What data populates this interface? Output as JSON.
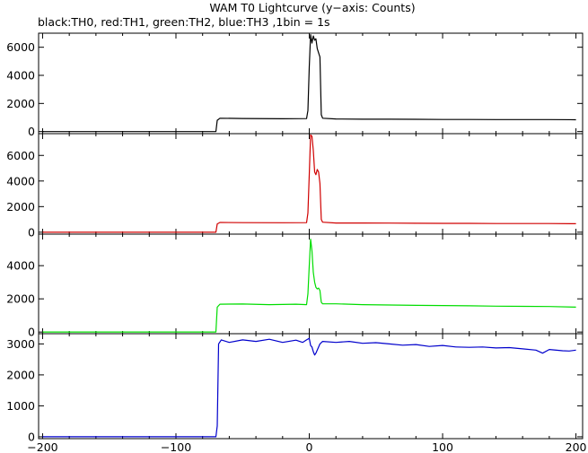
{
  "chart_data": {
    "type": "line",
    "title": "WAM T0 Lightcurve (y−axis: Counts)",
    "subtitle": "black:TH0, red:TH1, green:TH2, blue:TH3 ,1bin = 1s",
    "xlabel": "",
    "x_ticks": [
      -200,
      -100,
      0,
      100,
      200
    ],
    "xlim": [
      -203,
      205
    ],
    "grid": false,
    "panels": [
      {
        "name": "TH0",
        "color": "#000000",
        "ylim": [
          -150,
          7000
        ],
        "y_ticks": [
          0,
          2000,
          4000,
          6000
        ],
        "points": [
          [
            -200,
            0
          ],
          [
            -70,
            0
          ],
          [
            -69,
            800
          ],
          [
            -67,
            950
          ],
          [
            -50,
            930
          ],
          [
            -20,
            910
          ],
          [
            -2,
            920
          ],
          [
            -1,
            1500
          ],
          [
            0,
            4600
          ],
          [
            1,
            6900
          ],
          [
            2,
            6300
          ],
          [
            3,
            6800
          ],
          [
            4,
            6500
          ],
          [
            5,
            6600
          ],
          [
            6,
            5900
          ],
          [
            7,
            5600
          ],
          [
            8,
            5300
          ],
          [
            9,
            1200
          ],
          [
            10,
            950
          ],
          [
            20,
            900
          ],
          [
            40,
            880
          ],
          [
            60,
            880
          ],
          [
            80,
            870
          ],
          [
            100,
            860
          ],
          [
            120,
            860
          ],
          [
            140,
            850
          ],
          [
            160,
            850
          ],
          [
            180,
            850
          ],
          [
            200,
            840
          ]
        ]
      },
      {
        "name": "TH1",
        "color": "#d00000",
        "ylim": [
          -150,
          7700
        ],
        "y_ticks": [
          0,
          2000,
          4000,
          6000
        ],
        "points": [
          [
            -200,
            0
          ],
          [
            -70,
            0
          ],
          [
            -69,
            650
          ],
          [
            -67,
            760
          ],
          [
            -50,
            750
          ],
          [
            -20,
            740
          ],
          [
            -2,
            750
          ],
          [
            -1,
            1500
          ],
          [
            0,
            4500
          ],
          [
            1,
            7600
          ],
          [
            2,
            7500
          ],
          [
            3,
            6400
          ],
          [
            4,
            4700
          ],
          [
            5,
            4500
          ],
          [
            6,
            4900
          ],
          [
            7,
            4700
          ],
          [
            8,
            3800
          ],
          [
            9,
            1000
          ],
          [
            10,
            780
          ],
          [
            20,
            720
          ],
          [
            40,
            720
          ],
          [
            60,
            710
          ],
          [
            80,
            700
          ],
          [
            100,
            690
          ],
          [
            120,
            690
          ],
          [
            140,
            680
          ],
          [
            160,
            680
          ],
          [
            180,
            680
          ],
          [
            200,
            660
          ]
        ]
      },
      {
        "name": "TH2",
        "color": "#00dd00",
        "ylim": [
          -100,
          5900
        ],
        "y_ticks": [
          0,
          2000,
          4000
        ],
        "points": [
          [
            -200,
            0
          ],
          [
            -70,
            0
          ],
          [
            -69,
            1500
          ],
          [
            -67,
            1680
          ],
          [
            -50,
            1690
          ],
          [
            -30,
            1650
          ],
          [
            -10,
            1680
          ],
          [
            -2,
            1650
          ],
          [
            -1,
            2300
          ],
          [
            0,
            4000
          ],
          [
            1,
            5600
          ],
          [
            2,
            4900
          ],
          [
            3,
            3600
          ],
          [
            4,
            3000
          ],
          [
            5,
            2700
          ],
          [
            6,
            2600
          ],
          [
            7,
            2650
          ],
          [
            8,
            2500
          ],
          [
            9,
            1800
          ],
          [
            10,
            1700
          ],
          [
            20,
            1700
          ],
          [
            40,
            1650
          ],
          [
            60,
            1630
          ],
          [
            80,
            1610
          ],
          [
            100,
            1600
          ],
          [
            120,
            1580
          ],
          [
            140,
            1560
          ],
          [
            160,
            1550
          ],
          [
            180,
            1540
          ],
          [
            200,
            1500
          ]
        ]
      },
      {
        "name": "TH3",
        "color": "#0000cc",
        "ylim": [
          -60,
          3330
        ],
        "y_ticks": [
          0,
          1000,
          2000,
          3000
        ],
        "points": [
          [
            -200,
            0
          ],
          [
            -70,
            0
          ],
          [
            -69,
            350
          ],
          [
            -68,
            3000
          ],
          [
            -66,
            3130
          ],
          [
            -60,
            3050
          ],
          [
            -50,
            3130
          ],
          [
            -40,
            3080
          ],
          [
            -30,
            3150
          ],
          [
            -20,
            3050
          ],
          [
            -10,
            3120
          ],
          [
            -5,
            3050
          ],
          [
            -2,
            3130
          ],
          [
            0,
            3180
          ],
          [
            1,
            2950
          ],
          [
            2,
            2900
          ],
          [
            3,
            2750
          ],
          [
            4,
            2640
          ],
          [
            5,
            2700
          ],
          [
            6,
            2800
          ],
          [
            8,
            3000
          ],
          [
            10,
            3080
          ],
          [
            20,
            3050
          ],
          [
            30,
            3080
          ],
          [
            40,
            3020
          ],
          [
            50,
            3040
          ],
          [
            60,
            3000
          ],
          [
            70,
            2960
          ],
          [
            80,
            2980
          ],
          [
            90,
            2920
          ],
          [
            100,
            2950
          ],
          [
            110,
            2900
          ],
          [
            120,
            2890
          ],
          [
            130,
            2900
          ],
          [
            140,
            2870
          ],
          [
            150,
            2880
          ],
          [
            160,
            2840
          ],
          [
            170,
            2800
          ],
          [
            175,
            2700
          ],
          [
            180,
            2820
          ],
          [
            190,
            2780
          ],
          [
            195,
            2770
          ],
          [
            200,
            2800
          ]
        ]
      }
    ]
  }
}
